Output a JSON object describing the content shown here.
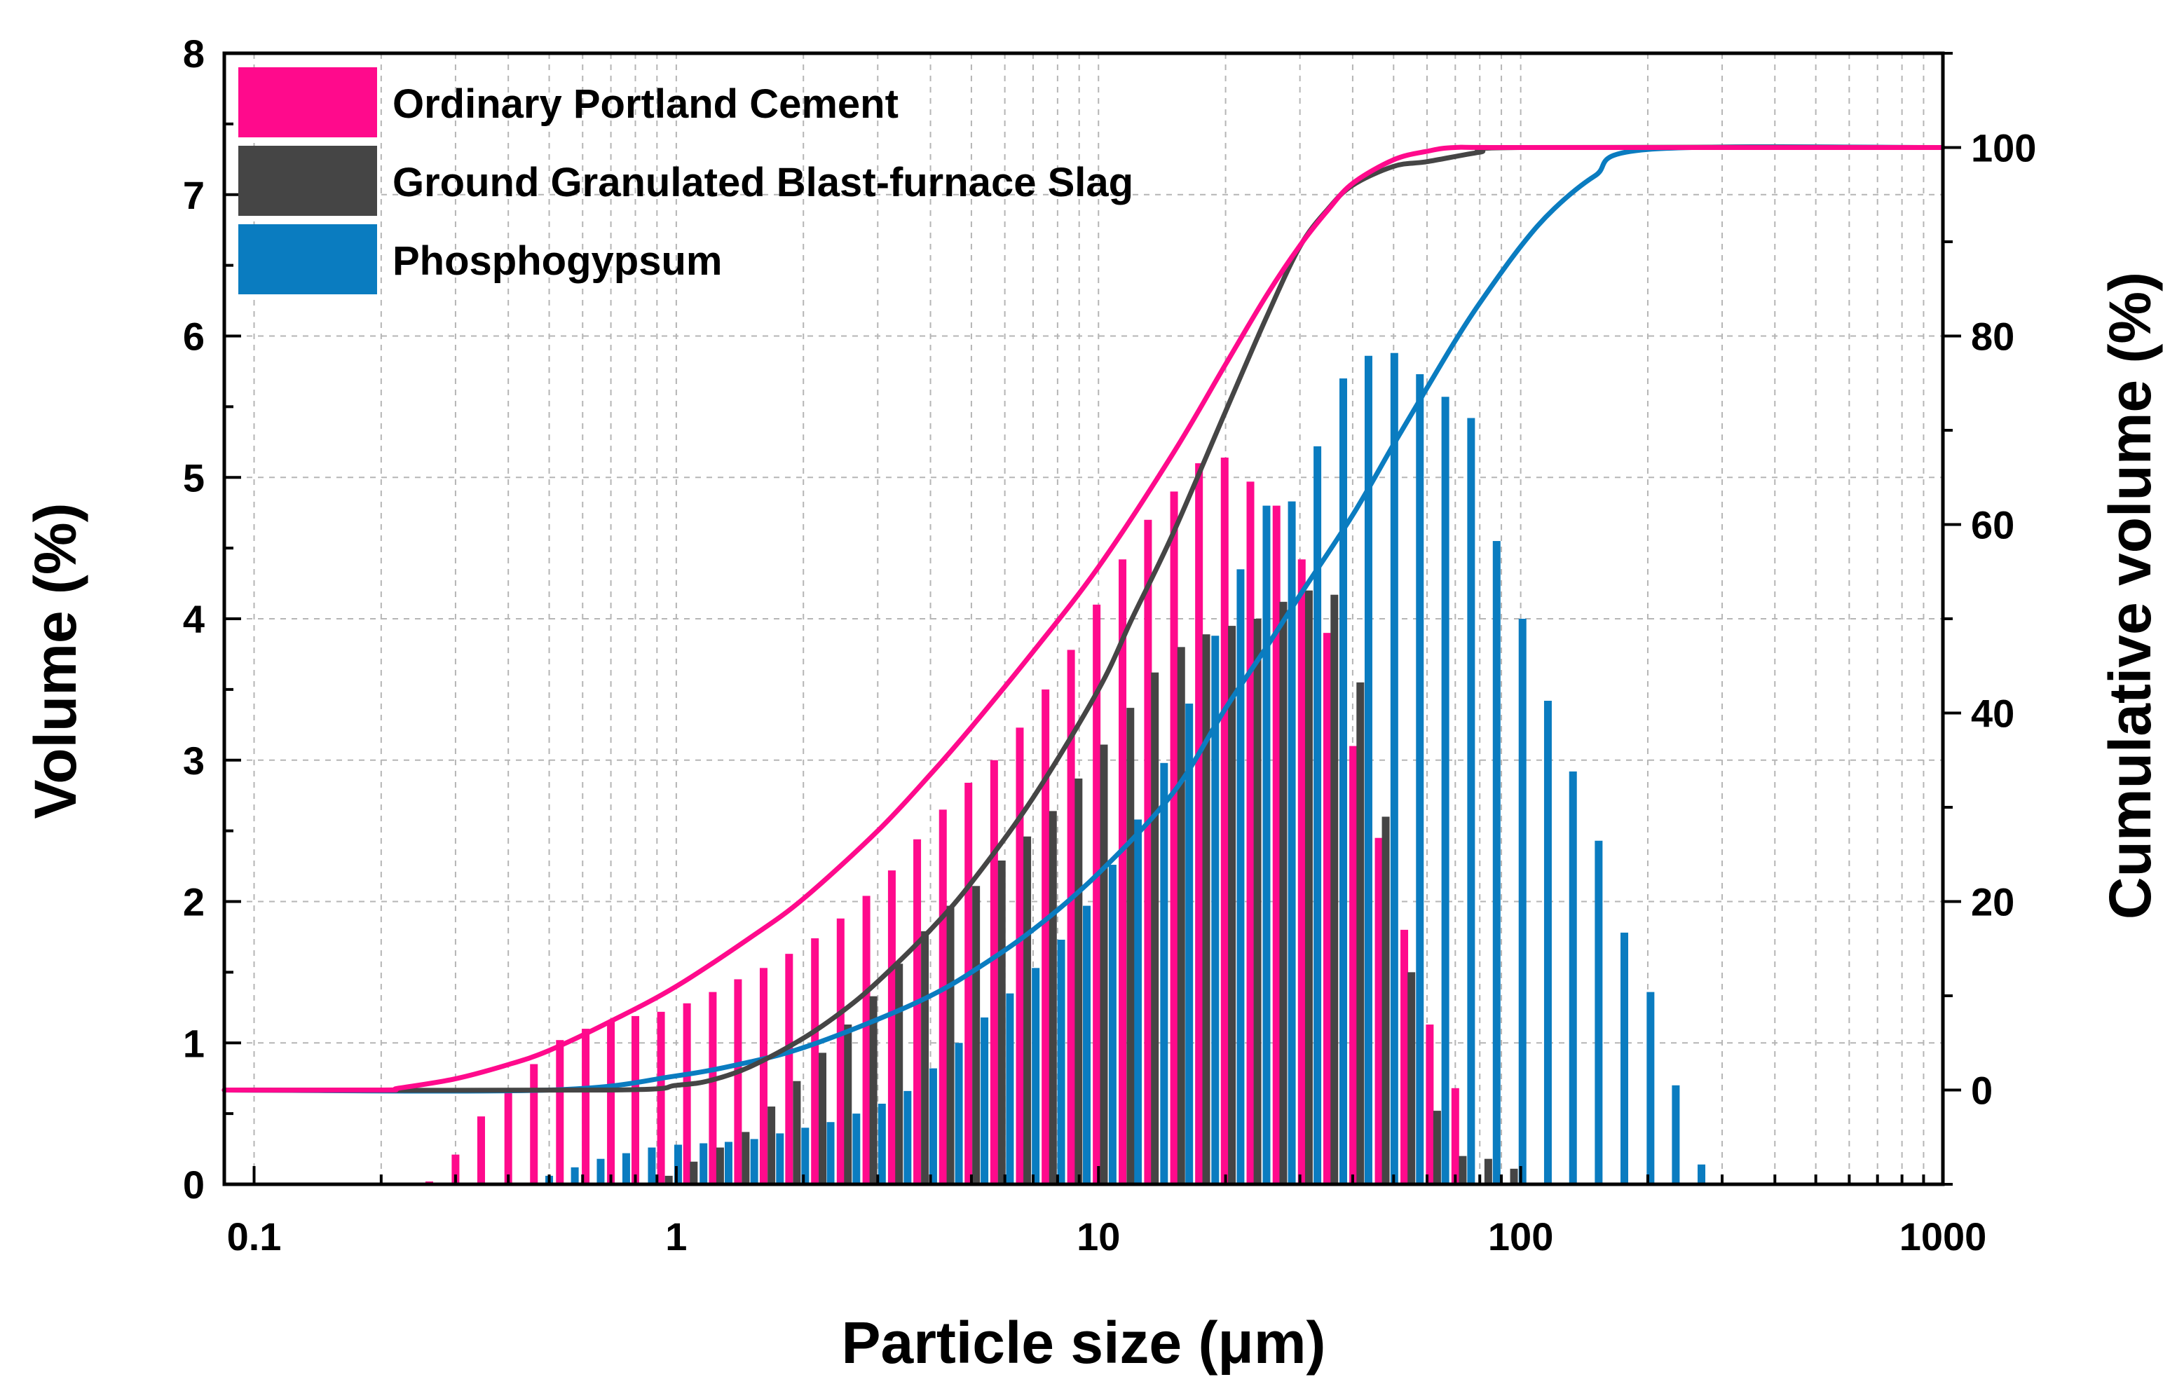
{
  "chart_data": {
    "type": "bar+line",
    "xlabel": "Particle size (μm)",
    "ylabel": "Volume (%)",
    "y2label": "Cumulative volume (%)",
    "xscale": "log",
    "xlim": [
      0.085,
      1000
    ],
    "ylim": [
      0,
      8
    ],
    "y2lim": [
      -10,
      110
    ],
    "xticks": [
      "0.1",
      "1",
      "10",
      "100",
      "1000"
    ],
    "yticks": [
      "0",
      "1",
      "2",
      "3",
      "4",
      "5",
      "6",
      "7",
      "8"
    ],
    "y2ticks": [
      "0",
      "20",
      "40",
      "60",
      "80",
      "100"
    ],
    "grid": true,
    "legend_position": "top-left",
    "series": [
      {
        "name": "Ordinary Portland Cement",
        "color": "#ff0a8c",
        "bars": {
          "x": [
            0.26,
            0.3,
            0.345,
            0.4,
            0.46,
            0.53,
            0.61,
            0.7,
            0.8,
            0.92,
            1.06,
            1.22,
            1.4,
            1.61,
            1.85,
            2.13,
            2.45,
            2.82,
            3.24,
            3.72,
            4.28,
            4.92,
            5.66,
            6.51,
            7.49,
            8.61,
            9.9,
            11.4,
            13.1,
            15.1,
            17.3,
            19.9,
            22.9,
            26.4,
            30.3,
            34.8,
            40.1,
            46.1,
            53.0,
            60.9,
            70.0
          ],
          "values": [
            0.02,
            0.21,
            0.48,
            0.65,
            0.85,
            1.02,
            1.1,
            1.15,
            1.19,
            1.22,
            1.28,
            1.36,
            1.45,
            1.53,
            1.63,
            1.74,
            1.88,
            2.04,
            2.22,
            2.44,
            2.65,
            2.84,
            3.0,
            3.23,
            3.5,
            3.78,
            4.1,
            4.42,
            4.7,
            4.9,
            5.1,
            5.14,
            4.97,
            4.8,
            4.42,
            3.9,
            3.1,
            2.45,
            1.8,
            1.13,
            0.68
          ]
        },
        "cumulative": {
          "x": [
            0.085,
            0.2,
            0.22,
            0.3,
            0.4,
            0.5,
            0.7,
            1,
            1.5,
            2,
            3,
            4,
            5,
            7,
            10,
            15,
            20,
            25,
            30,
            35,
            40,
            50,
            60,
            70,
            100,
            1000
          ],
          "values": [
            0,
            0,
            0.2,
            1.2,
            2.7,
            4.2,
            7.3,
            11,
            16.2,
            20.3,
            27.5,
            33.5,
            38.5,
            46.5,
            55.5,
            67.5,
            77,
            84.3,
            89.6,
            93.4,
            96.2,
            98.7,
            99.6,
            100,
            100,
            100
          ]
        }
      },
      {
        "name": "Ground Granulated Blast-furnace Slag",
        "color": "#454545",
        "bars": {
          "x": [
            0.96,
            1.1,
            1.27,
            1.46,
            1.68,
            1.93,
            2.22,
            2.55,
            2.93,
            3.37,
            3.88,
            4.46,
            5.13,
            5.9,
            6.78,
            7.8,
            8.97,
            10.3,
            11.9,
            13.6,
            15.7,
            18.0,
            20.7,
            23.8,
            27.4,
            31.5,
            36.2,
            41.7,
            47.9,
            55.1,
            63.4,
            72.9,
            83.8,
            96.4
          ],
          "values": [
            0.06,
            0.16,
            0.26,
            0.37,
            0.55,
            0.73,
            0.93,
            1.13,
            1.33,
            1.56,
            1.79,
            1.97,
            2.11,
            2.29,
            2.46,
            2.64,
            2.87,
            3.11,
            3.37,
            3.62,
            3.8,
            3.89,
            3.95,
            4.0,
            4.12,
            4.2,
            4.17,
            3.55,
            2.6,
            1.5,
            0.52,
            0.2,
            0.18,
            0.11
          ]
        },
        "cumulative": {
          "x": [
            0.085,
            0.7,
            1,
            1.2,
            1.5,
            2,
            2.5,
            3,
            4,
            5,
            7,
            10,
            12,
            15,
            20,
            25,
            30,
            35,
            40,
            50,
            60,
            80,
            100,
            1000
          ],
          "values": [
            0,
            0,
            0.5,
            1,
            2.5,
            5.5,
            8.5,
            11.5,
            17,
            22,
            31,
            42.5,
            50,
            59,
            72,
            82,
            89.5,
            93.5,
            96,
            98,
            98.5,
            99.5,
            100,
            100
          ]
        }
      },
      {
        "name": "Phosphogypsum",
        "color": "#0a7cc0",
        "bars": {
          "x": [
            0.5,
            0.575,
            0.662,
            0.761,
            0.875,
            1.01,
            1.16,
            1.33,
            1.53,
            1.76,
            2.02,
            2.32,
            2.67,
            3.07,
            3.53,
            4.06,
            4.67,
            5.37,
            6.17,
            7.1,
            8.16,
            9.38,
            10.8,
            12.4,
            14.3,
            16.4,
            18.9,
            21.7,
            25.0,
            28.7,
            33.0,
            38.0,
            43.6,
            50.2,
            57.7,
            66.3,
            76.3,
            87.7,
            101,
            116,
            133,
            153,
            176,
            203,
            233,
            268
          ],
          "values": [
            0.06,
            0.12,
            0.18,
            0.22,
            0.26,
            0.28,
            0.29,
            0.3,
            0.32,
            0.36,
            0.4,
            0.44,
            0.5,
            0.57,
            0.66,
            0.82,
            1.0,
            1.18,
            1.35,
            1.53,
            1.73,
            1.97,
            2.26,
            2.58,
            2.98,
            3.4,
            3.88,
            4.35,
            4.8,
            4.83,
            5.22,
            5.7,
            5.86,
            5.88,
            5.73,
            5.57,
            5.42,
            4.55,
            4.0,
            3.42,
            2.92,
            2.43,
            1.78,
            1.36,
            0.7,
            0.14
          ]
        },
        "cumulative": {
          "x": [
            0.085,
            0.5,
            1,
            1.5,
            2,
            3,
            4,
            5,
            7,
            10,
            15,
            20,
            25,
            30,
            40,
            50,
            60,
            70,
            80,
            100,
            120,
            150,
            200,
            1000
          ],
          "values": [
            0,
            0,
            1.5,
            3,
            4.5,
            7.5,
            10,
            12.5,
            17,
            23,
            31.5,
            40.5,
            47,
            52.5,
            61,
            68.5,
            74.5,
            79.5,
            83.5,
            89.5,
            93.5,
            97,
            99.8,
            100
          ]
        }
      }
    ]
  }
}
